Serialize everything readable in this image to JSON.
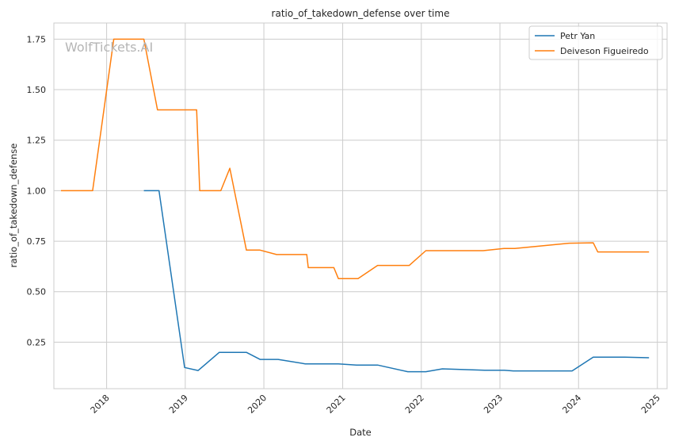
{
  "chart_data": {
    "type": "line",
    "title": "ratio_of_takedown_defense over time",
    "xlabel": "Date",
    "ylabel": "ratio_of_takedown_defense",
    "watermark": "WolfTickets.AI",
    "xlim": [
      "2017-05-01",
      "2025-02-15"
    ],
    "ylim": [
      0.02,
      1.83
    ],
    "x_ticks": [
      {
        "date": "2018-01-01",
        "label": "2018"
      },
      {
        "date": "2019-01-01",
        "label": "2019"
      },
      {
        "date": "2020-01-01",
        "label": "2020"
      },
      {
        "date": "2021-01-01",
        "label": "2021"
      },
      {
        "date": "2022-01-01",
        "label": "2022"
      },
      {
        "date": "2023-01-01",
        "label": "2023"
      },
      {
        "date": "2024-01-01",
        "label": "2024"
      },
      {
        "date": "2025-01-01",
        "label": "2025"
      }
    ],
    "y_ticks": [
      {
        "value": 0.25,
        "label": "0.25"
      },
      {
        "value": 0.5,
        "label": "0.50"
      },
      {
        "value": 0.75,
        "label": "0.75"
      },
      {
        "value": 1.0,
        "label": "1.00"
      },
      {
        "value": 1.25,
        "label": "1.25"
      },
      {
        "value": 1.5,
        "label": "1.50"
      },
      {
        "value": 1.75,
        "label": "1.75"
      }
    ],
    "grid": true,
    "legend_position": "top-right",
    "series": [
      {
        "name": "Petr Yan",
        "color": "#1f77b4",
        "x": [
          "2018-06-23",
          "2018-09-01",
          "2018-12-29",
          "2019-03-02",
          "2019-06-08",
          "2019-10-12",
          "2019-12-14",
          "2020-03-07",
          "2020-07-11",
          "2020-12-12",
          "2021-03-06",
          "2021-06-12",
          "2021-10-30",
          "2022-01-22",
          "2022-04-09",
          "2022-10-22",
          "2023-01-21",
          "2023-03-04",
          "2023-12-02",
          "2024-03-09",
          "2024-08-03",
          "2024-11-23"
        ],
        "y": [
          1.0,
          1.0,
          0.125,
          0.11,
          0.2,
          0.2,
          0.165,
          0.165,
          0.143,
          0.143,
          0.137,
          0.137,
          0.104,
          0.104,
          0.118,
          0.111,
          0.111,
          0.108,
          0.108,
          0.176,
          0.176,
          0.173
        ]
      },
      {
        "name": "Deiveson Figueiredo",
        "color": "#ff7f0e",
        "x": [
          "2017-06-03",
          "2017-10-28",
          "2018-02-03",
          "2018-06-23",
          "2018-08-25",
          "2019-02-23",
          "2019-03-09",
          "2019-06-15",
          "2019-07-27",
          "2019-10-12",
          "2019-12-14",
          "2020-02-29",
          "2020-07-18",
          "2020-07-25",
          "2020-11-21",
          "2020-12-12",
          "2021-03-13",
          "2021-06-12",
          "2021-11-06",
          "2022-01-22",
          "2022-06-11",
          "2022-10-15",
          "2023-01-21",
          "2023-03-11",
          "2023-11-18",
          "2024-03-09",
          "2024-03-30",
          "2024-11-23"
        ],
        "y": [
          1.0,
          1.0,
          1.75,
          1.75,
          1.4,
          1.4,
          1.0,
          1.0,
          1.111,
          0.706,
          0.706,
          0.684,
          0.684,
          0.619,
          0.619,
          0.565,
          0.565,
          0.63,
          0.63,
          0.703,
          0.703,
          0.703,
          0.714,
          0.714,
          0.74,
          0.742,
          0.697,
          0.697
        ]
      }
    ]
  }
}
